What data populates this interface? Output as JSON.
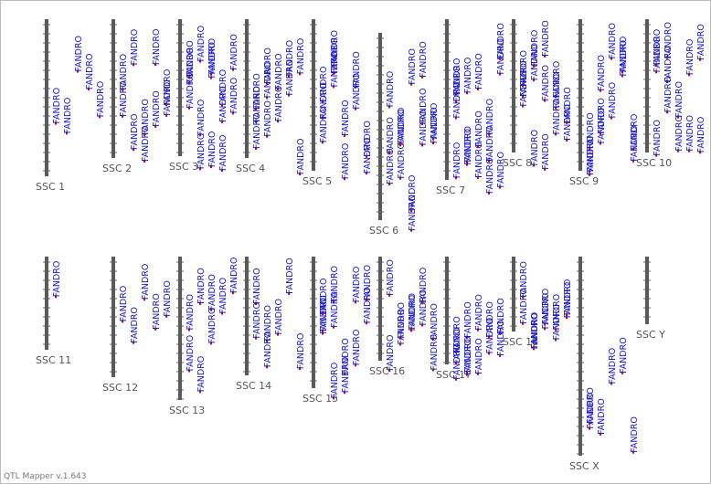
{
  "chromosomes": [
    {
      "label": "SSC 1",
      "qtls": [
        "FANDRO",
        "FANDRO",
        "FANDRO",
        "FANDRO",
        "FANDRO"
      ]
    },
    {
      "label": "SSC 2",
      "qtls": [
        "FANDRO",
        "FANDRO",
        "FANDRO",
        "FANDRO",
        "FANDRO",
        "FANDRO",
        "FANDRO",
        "FANDRO",
        "FANDRO",
        "FANDRO"
      ]
    },
    {
      "label": "SSC 3",
      "qtls": [
        "FANDRO",
        "FANDRO",
        "FANDRO",
        "FANDRO",
        "FANDRO",
        "FANDRO",
        "FANDRO",
        "FANDRO",
        "FANDRO",
        "FANDRO",
        "FANDRO",
        "FANDRO",
        "FANDRO",
        "FANDRO"
      ]
    },
    {
      "label": "SSC 4",
      "qtls": [
        "FANDRO",
        "FANDRO",
        "FANDRO",
        "FANDRO",
        "FANDRO",
        "FANDRO",
        "FANDRO",
        "FANDRO",
        "FANDRO",
        "FANDRO",
        "FANDRO",
        "FANDRO"
      ]
    },
    {
      "label": "SSC 5",
      "qtls": [
        "FANDRO",
        "FANDRO",
        "FANDRO",
        "FANDRO",
        "FANDRO",
        "FANDRO",
        "FANDRO",
        "FANDRO",
        "FANDRO",
        "FANDRO",
        "FANDRO",
        "FANDRO"
      ]
    },
    {
      "label": "SSC 6",
      "qtls": [
        "FANDRO",
        "FANDRO",
        "FANDRO",
        "FANDRO",
        "FANDRO",
        "FANDRO",
        "FANDRO",
        "FANDRO",
        "FANDRO",
        "FANDRO",
        "FANDRO",
        "FANDRO",
        "FANDRO",
        "FANDRO"
      ]
    },
    {
      "label": "SSC 7",
      "qtls": [
        "FANDRO",
        "FANDRO",
        "FANDRO",
        "FANDRO",
        "FANDRO",
        "FANDRO",
        "FANDRO",
        "FANDRO",
        "FANDRO",
        "FANDRO",
        "FANDRO",
        "FANDRO",
        "FANDRO",
        "FANDRO",
        "FANDRO",
        "FANDRO"
      ]
    },
    {
      "label": "SSC 8",
      "qtls": [
        "FANDRO",
        "FANDRO",
        "FANDRO",
        "FANDRO",
        "FANDRO",
        "FANDRO",
        "FANDRO",
        "FANDRO",
        "FANDRO",
        "FANDRO",
        "FANDRO",
        "FANDRO",
        "FANDRO",
        "FANDRO"
      ]
    },
    {
      "label": "SSC 9",
      "qtls": [
        "FANDRO",
        "FANDRO",
        "FANDRO",
        "FANDRO",
        "FANDRO",
        "FANDRO",
        "FANDRO",
        "FANDRO",
        "FANDRO",
        "FANDRO",
        "FANDRO",
        "FANDRO"
      ]
    },
    {
      "label": "SSC 10",
      "qtls": [
        "FANDRO",
        "FANDRO",
        "FANDRO",
        "FANDRO",
        "FANDRO",
        "FANDRO",
        "FANDRO",
        "FANDRO",
        "FANDRO",
        "FANDRO",
        "FANDRO",
        "FANDRO"
      ]
    },
    {
      "label": "SSC 11",
      "qtls": [
        "FANDRO"
      ]
    },
    {
      "label": "SSC 12",
      "qtls": [
        "FANDRO",
        "FANDRO",
        "FANDRO",
        "FANDRO",
        "FANDRO"
      ]
    },
    {
      "label": "SSC 13",
      "qtls": [
        "FANDRO",
        "FANDRO",
        "FANDRO",
        "FANDRO",
        "FANDRO",
        "FANDRO",
        "FANDRO",
        "FANDRO"
      ]
    },
    {
      "label": "SSC 14",
      "qtls": [
        "FANDRO",
        "FANDRO",
        "FANDRO",
        "FANDRO",
        "FANDRO",
        "FANDRO",
        "FANDRO"
      ]
    },
    {
      "label": "SSC 15",
      "qtls": [
        "FANDRO",
        "FANDRO",
        "FANDRO",
        "FANDRO",
        "FANDRO",
        "FANDRO",
        "FANDRO",
        "FANDRO",
        "FANDRO",
        "FANDRO",
        "FANDRO",
        "FANDRO"
      ]
    },
    {
      "label": "SSC 16",
      "qtls": [
        "FANDRO",
        "FANDRO",
        "FANDRO",
        "FANDRO",
        "FANDRO",
        "FANDRO",
        "FANDRO",
        "FANDRO",
        "FANDRO",
        "FANDRO"
      ]
    },
    {
      "label": "SSC 17",
      "qtls": [
        "FANDRO",
        "FANDRO",
        "FANDRO",
        "FANDRO",
        "FANDRO",
        "FANDRO",
        "FANDRO",
        "FANDRO",
        "FANDRO",
        "FANDRO",
        "FANDRO",
        "FANDRO"
      ]
    },
    {
      "label": "SSC 18",
      "qtls": [
        "FANDRO",
        "FANDRO",
        "FANDRO",
        "FANDRO",
        "FANDRO",
        "FANDRO",
        "FANDRO",
        "FANDRO",
        "FANDRO",
        "FANDRO"
      ]
    },
    {
      "label": "SSC X",
      "qtls": [
        "FANDRO",
        "FANDRO",
        "FANDRO",
        "FANDRO",
        "FANDRO",
        "FANDRO"
      ]
    },
    {
      "label": "SSC Y",
      "qtls": []
    }
  ],
  "footer": "QTL Mapper v.1.643"
}
